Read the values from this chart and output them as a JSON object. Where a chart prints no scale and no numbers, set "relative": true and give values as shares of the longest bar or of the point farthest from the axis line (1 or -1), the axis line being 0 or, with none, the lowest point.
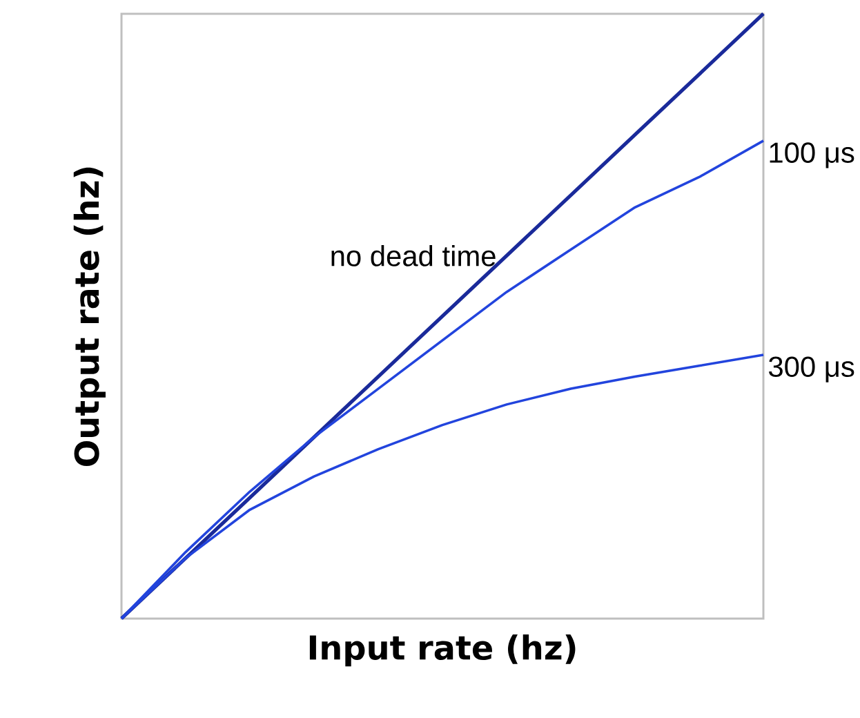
{
  "chart_data": {
    "type": "line",
    "relative": true,
    "xlabel": "Input rate (hz)",
    "ylabel": "Output rate (hz)",
    "categories": [
      null,
      null,
      null,
      null,
      null,
      null,
      null,
      null,
      null,
      null,
      null
    ],
    "marker": "none",
    "line_style": "solid",
    "series": [
      {
        "name": "no dead time",
        "color": "#1a2a9a",
        "values": [
          0,
          0.1,
          0.2,
          0.3,
          0.4,
          0.5,
          0.6,
          0.7,
          0.8,
          0.9,
          1
        ]
      },
      {
        "name": "100 μs",
        "color": "#2244dd",
        "values": [
          0,
          0.11,
          0.21,
          0.3,
          0.38,
          0.46,
          0.54,
          0.61,
          0.68,
          0.73,
          0.79
        ]
      },
      {
        "name": "300 μs",
        "color": "#2244dd",
        "values": [
          0,
          0.1,
          0.18,
          0.235,
          0.28,
          0.32,
          0.354,
          0.38,
          0.4,
          0.418,
          0.436
        ]
      }
    ]
  }
}
